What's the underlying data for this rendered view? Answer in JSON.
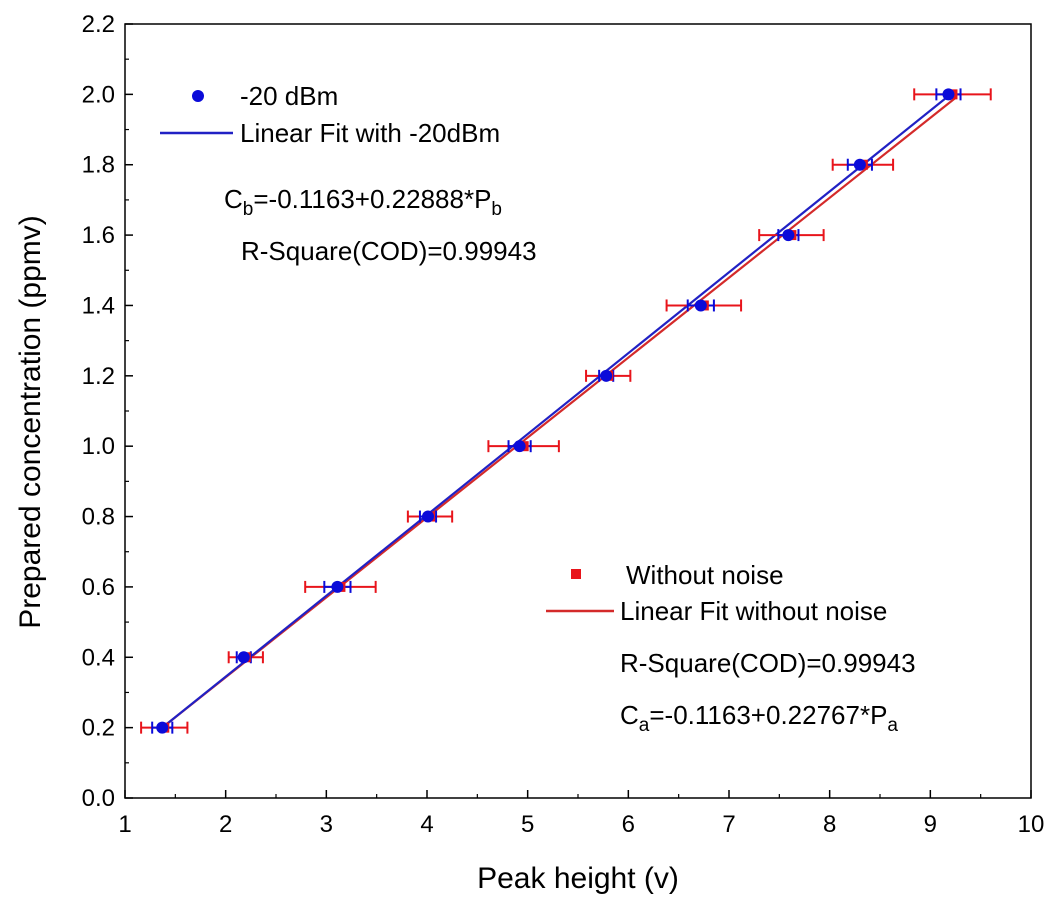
{
  "chart_data": {
    "type": "scatter",
    "title": "",
    "xlabel": "Peak height (v)",
    "ylabel": "Prepared concentration (ppmv)",
    "xlim": [
      1,
      10
    ],
    "ylim": [
      0.0,
      2.2
    ],
    "xticks": [
      1,
      2,
      3,
      4,
      5,
      6,
      7,
      8,
      9,
      10
    ],
    "xtick_labels": [
      "1",
      "2",
      "3",
      "4",
      "5",
      "6",
      "7",
      "8",
      "9",
      "10"
    ],
    "yticks": [
      0.0,
      0.2,
      0.4,
      0.6,
      0.8,
      1.0,
      1.2,
      1.4,
      1.6,
      1.8,
      2.0,
      2.2
    ],
    "ytick_labels": [
      "0.0",
      "0.2",
      "0.4",
      "0.6",
      "0.8",
      "1.0",
      "1.2",
      "1.4",
      "1.6",
      "1.8",
      "2.0",
      "2.2"
    ],
    "grid": false,
    "series": [
      {
        "name": "Without noise",
        "kind": "points",
        "marker": "square",
        "color": "#e8141b",
        "x": [
          1.39,
          2.2,
          3.14,
          4.03,
          4.96,
          5.8,
          6.75,
          7.62,
          8.33,
          9.22
        ],
        "y": [
          0.2,
          0.4,
          0.6,
          0.8,
          1.0,
          1.2,
          1.4,
          1.6,
          1.8,
          2.0
        ],
        "xerr": [
          0.23,
          0.17,
          0.35,
          0.22,
          0.35,
          0.22,
          0.37,
          0.32,
          0.3,
          0.38
        ]
      },
      {
        "name": "-20 dBm",
        "kind": "points",
        "marker": "circle",
        "color": "#0b0bd9",
        "x": [
          1.37,
          2.18,
          3.11,
          4.01,
          4.92,
          5.78,
          6.72,
          7.59,
          8.3,
          9.18
        ],
        "y": [
          0.2,
          0.4,
          0.6,
          0.8,
          1.0,
          1.2,
          1.4,
          1.6,
          1.8,
          2.0
        ],
        "xerr": [
          0.1,
          0.07,
          0.13,
          0.08,
          0.11,
          0.07,
          0.13,
          0.1,
          0.12,
          0.12
        ]
      },
      {
        "name": "Linear Fit without noise",
        "kind": "line",
        "color": "#d42a2a",
        "x": [
          1.37,
          9.25
        ],
        "y": [
          0.2,
          1.99
        ]
      },
      {
        "name": "Linear Fit with -20dBm",
        "kind": "line",
        "color": "#2121c4",
        "x": [
          1.37,
          9.2
        ],
        "y": [
          0.2,
          2.0
        ]
      }
    ],
    "annotations": {
      "fit_b": {
        "base": "C",
        "sub1": "b",
        "eq": "=-0.1163+0.22888*P",
        "sub2": "b"
      },
      "r2_b": "R-Square(COD)=0.99943",
      "r2_a": "R-Square(COD)=0.99943",
      "fit_a": {
        "base": "C",
        "sub1": "a",
        "eq": "=-0.1163+0.22767*P",
        "sub2": "a"
      }
    },
    "legend": [
      {
        "label": "-20 dBm",
        "symbol": "circle",
        "color": "#0b0bd9",
        "position": "top-left"
      },
      {
        "label": "Linear Fit with -20dBm",
        "symbol": "line",
        "color": "#2121c4",
        "position": "top-left"
      },
      {
        "label": "Without noise",
        "symbol": "square",
        "color": "#e8141b",
        "position": "bottom-right"
      },
      {
        "label": "Linear Fit without noise",
        "symbol": "line",
        "color": "#d42a2a",
        "position": "bottom-right"
      }
    ]
  }
}
